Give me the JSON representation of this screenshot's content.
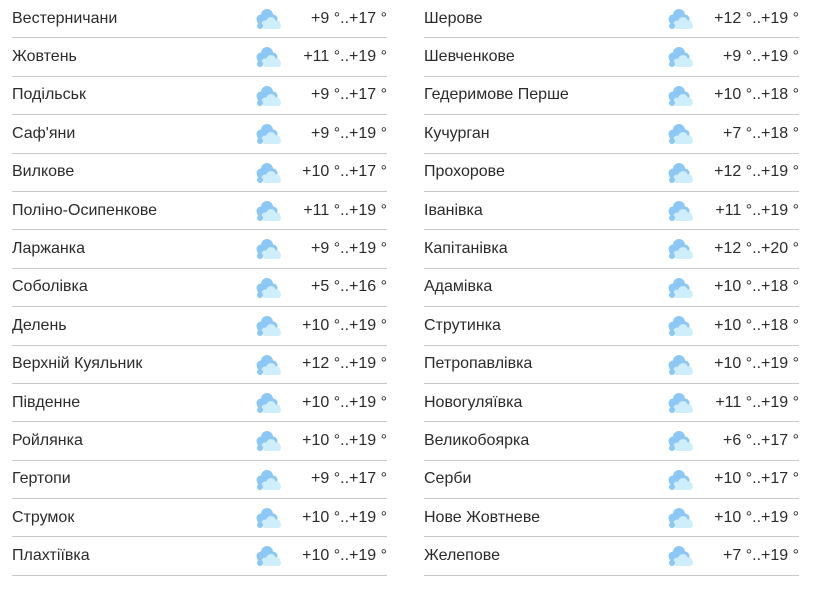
{
  "icon": "cloudy-icon",
  "colors": {
    "cloud_back": "#8cc8f5",
    "cloud_front": "#cfeefc",
    "divider": "#c8c8c8"
  },
  "left": [
    {
      "name": "Вестерничани",
      "temp": "+9 °..+17 °"
    },
    {
      "name": "Жовтень",
      "temp": "+11 °..+19 °"
    },
    {
      "name": "Подільськ",
      "temp": "+9 °..+17 °"
    },
    {
      "name": "Саф'яни",
      "temp": "+9 °..+19 °"
    },
    {
      "name": "Вилкове",
      "temp": "+10 °..+17 °"
    },
    {
      "name": "Поліно-Осипенкове",
      "temp": "+11 °..+19 °"
    },
    {
      "name": "Ларжанка",
      "temp": "+9 °..+19 °"
    },
    {
      "name": "Соболівка",
      "temp": "+5 °..+16 °"
    },
    {
      "name": "Делень",
      "temp": "+10 °..+19 °"
    },
    {
      "name": "Верхній Куяльник",
      "temp": "+12 °..+19 °"
    },
    {
      "name": "Південне",
      "temp": "+10 °..+19 °"
    },
    {
      "name": "Ройлянка",
      "temp": "+10 °..+19 °"
    },
    {
      "name": "Гертопи",
      "temp": "+9 °..+17 °"
    },
    {
      "name": "Струмок",
      "temp": "+10 °..+19 °"
    },
    {
      "name": "Плахтіївка",
      "temp": "+10 °..+19 °"
    }
  ],
  "right": [
    {
      "name": "Шерове",
      "temp": "+12 °..+19 °"
    },
    {
      "name": "Шевченкове",
      "temp": "+9 °..+19 °"
    },
    {
      "name": "Гедеримове Перше",
      "temp": "+10 °..+18 °"
    },
    {
      "name": "Кучурган",
      "temp": "+7 °..+18 °"
    },
    {
      "name": "Прохорове",
      "temp": "+12 °..+19 °"
    },
    {
      "name": "Іванівка",
      "temp": "+11 °..+19 °"
    },
    {
      "name": "Капітанівка",
      "temp": "+12 °..+20 °"
    },
    {
      "name": "Адамівка",
      "temp": "+10 °..+18 °"
    },
    {
      "name": "Струтинка",
      "temp": "+10 °..+18 °"
    },
    {
      "name": "Петропавлівка",
      "temp": "+10 °..+19 °"
    },
    {
      "name": "Новогуляївка",
      "temp": "+11 °..+19 °"
    },
    {
      "name": "Великобоярка",
      "temp": "+6 °..+17 °"
    },
    {
      "name": "Серби",
      "temp": "+10 °..+17 °"
    },
    {
      "name": "Нове Жовтневе",
      "temp": "+10 °..+19 °"
    },
    {
      "name": "Желепове",
      "temp": "+7 °..+19 °"
    }
  ]
}
